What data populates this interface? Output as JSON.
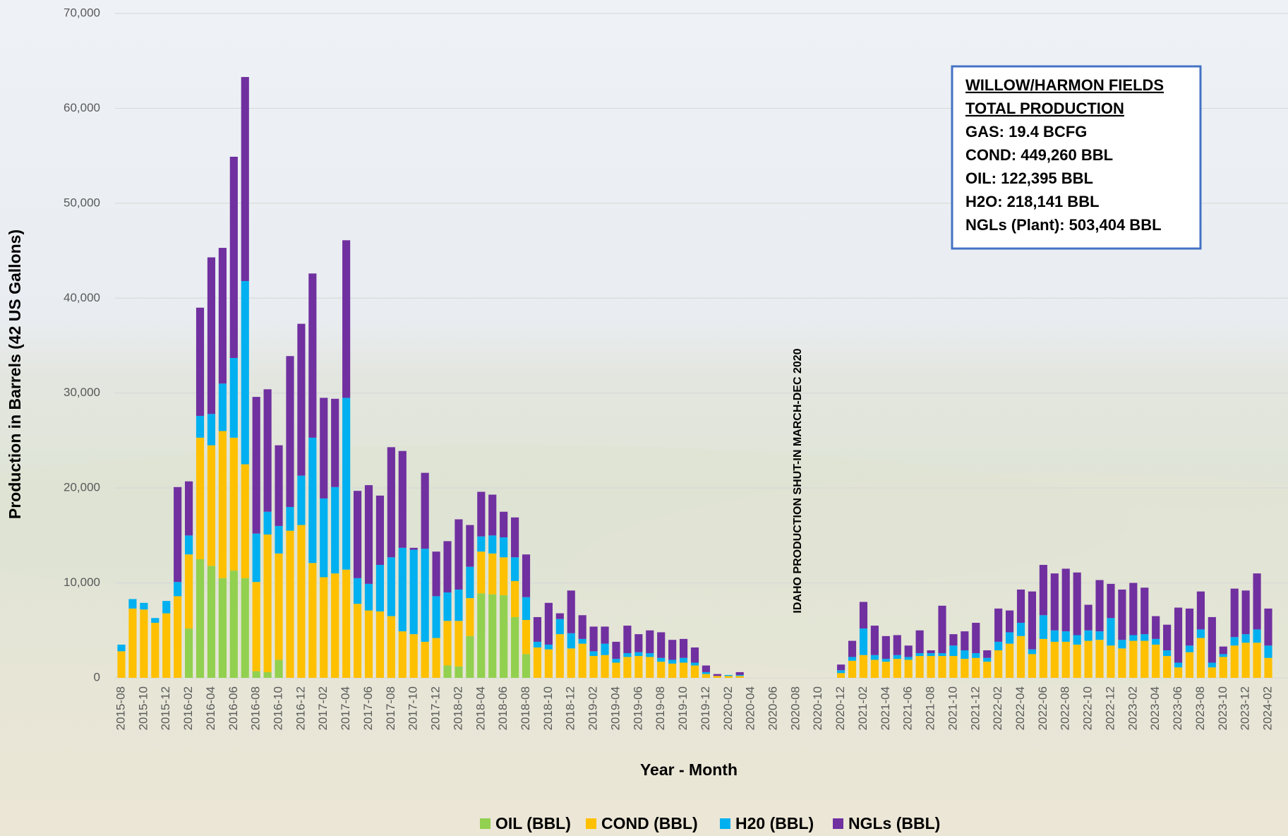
{
  "chart_data": {
    "type": "stacked_bar",
    "y_label": "Production in Barrels (42 US Gallons)",
    "x_label": "Year -  Month",
    "annotation": "IDAHO PRODUCTION SHUT-IN MARCH-DEC 2020",
    "summary_box": {
      "title": [
        "WILLOW/HARMON FIELDS",
        "TOTAL PRODUCTION"
      ],
      "lines": [
        "GAS: 19.4 BCFG",
        "COND: 449,260 BBL",
        "OIL:  122,395 BBL",
        "H2O:  218,141 BBL",
        "NGLs (Plant): 503,404 BBL"
      ]
    },
    "categories": [
      "2015-08",
      null,
      "2015-10",
      null,
      "2015-12",
      null,
      "2016-02",
      null,
      "2016-04",
      null,
      "2016-06",
      null,
      "2016-08",
      null,
      "2016-10",
      null,
      "2016-12",
      null,
      "2017-02",
      null,
      "2017-04",
      null,
      "2017-06",
      null,
      "2017-08",
      null,
      "2017-10",
      null,
      "2017-12",
      null,
      "2018-02",
      null,
      "2018-04",
      null,
      "2018-06",
      null,
      "2018-08",
      null,
      "2018-10",
      null,
      "2018-12",
      null,
      "2019-02",
      null,
      "2019-04",
      null,
      "2019-06",
      null,
      "2019-08",
      null,
      "2019-10",
      null,
      "2019-12",
      null,
      "2020-02",
      null,
      "2020-04",
      null,
      "2020-06",
      null,
      "2020-08",
      null,
      "2020-10",
      null,
      "2020-12",
      null,
      "2021-02",
      null,
      "2021-04",
      null,
      "2021-06",
      null,
      "2021-08",
      null,
      "2021-10",
      null,
      "2021-12",
      null,
      "2022-02",
      null,
      "2022-04",
      null,
      "2022-06",
      null,
      "2022-08",
      null,
      "2022-10",
      null,
      "2022-12",
      null,
      "2023-02",
      null,
      "2023-04",
      null,
      "2023-06",
      null,
      "2023-08",
      null,
      "2023-10",
      null,
      "2023-12",
      null,
      "2024-02"
    ],
    "series": [
      {
        "name": "OIL (BBL)",
        "color": "#92d050",
        "values": [
          0,
          0,
          0,
          0,
          0,
          0,
          5200,
          12500,
          11800,
          10500,
          11300,
          10500,
          700,
          600,
          1900,
          0,
          0,
          0,
          0,
          0,
          0,
          0,
          0,
          0,
          0,
          0,
          0,
          0,
          0,
          1300,
          1200,
          4400,
          8900,
          8800,
          8700,
          6400,
          2500,
          0,
          0,
          0,
          0,
          0,
          0,
          0,
          0,
          0,
          0,
          0,
          0,
          0,
          0,
          0,
          0,
          0,
          0,
          0,
          0,
          0,
          0,
          0,
          0,
          0,
          0,
          0,
          0,
          0,
          0,
          0,
          0,
          0,
          0,
          0,
          0,
          0,
          0,
          0,
          0,
          0,
          0,
          0,
          0,
          0,
          0,
          0,
          0,
          0,
          0,
          0,
          0,
          0,
          0,
          0,
          0,
          0,
          0,
          0,
          0,
          0,
          0,
          0,
          0,
          0,
          0
        ]
      },
      {
        "name": "COND (BBL)",
        "color": "#ffc000",
        "values": [
          2800,
          7300,
          7200,
          5800,
          6800,
          8600,
          7800,
          12800,
          12700,
          15500,
          14000,
          12000,
          9400,
          14500,
          11200,
          15500,
          16100,
          12100,
          10600,
          11000,
          11400,
          7800,
          7100,
          7000,
          6500,
          4900,
          4600,
          3800,
          4200,
          4700,
          4800,
          4000,
          4400,
          4300,
          4000,
          3800,
          3600,
          3200,
          3000,
          4600,
          3100,
          3600,
          2300,
          2400,
          1600,
          2200,
          2300,
          2200,
          1700,
          1500,
          1600,
          1300,
          400,
          200,
          200,
          200,
          0,
          0,
          0,
          0,
          0,
          0,
          0,
          0,
          500,
          1800,
          2400,
          1900,
          1700,
          2000,
          1900,
          2300,
          2300,
          2300,
          2300,
          2000,
          2100,
          1700,
          2900,
          3600,
          4400,
          2500,
          4100,
          3800,
          3800,
          3500,
          3900,
          4000,
          3400,
          3100,
          3900,
          3900,
          3500,
          2300,
          1100,
          2700,
          4200,
          1100,
          2200,
          3400,
          3700,
          3700,
          2100
        ]
      },
      {
        "name": "H20 (BBL)",
        "color": "#00b0f0",
        "values": [
          700,
          1000,
          700,
          500,
          1300,
          1500,
          2000,
          2300,
          3300,
          5000,
          8400,
          19300,
          5100,
          2400,
          2900,
          2500,
          5200,
          13200,
          8300,
          9100,
          18100,
          2700,
          2800,
          4900,
          6200,
          8800,
          8900,
          9800,
          4400,
          3000,
          3300,
          3300,
          1600,
          1900,
          2100,
          2500,
          2400,
          600,
          500,
          1600,
          1600,
          500,
          500,
          1200,
          400,
          400,
          400,
          400,
          400,
          400,
          500,
          300,
          200,
          0,
          100,
          100,
          0,
          0,
          0,
          0,
          0,
          0,
          0,
          0,
          300,
          400,
          2800,
          500,
          300,
          400,
          300,
          300,
          300,
          300,
          1100,
          900,
          500,
          400,
          900,
          1200,
          1400,
          500,
          2500,
          1200,
          1100,
          1000,
          1100,
          900,
          2900,
          900,
          600,
          700,
          600,
          600,
          500,
          700,
          900,
          500,
          300,
          900,
          900,
          1400,
          1300
        ]
      },
      {
        "name": "NGLs (BBL)",
        "color": "#7030a0",
        "values": [
          0,
          0,
          0,
          0,
          0,
          10000,
          5700,
          11400,
          16500,
          14300,
          21200,
          21500,
          14400,
          12900,
          8500,
          15900,
          16000,
          17300,
          10600,
          9300,
          16600,
          9200,
          10400,
          7300,
          11600,
          10200,
          200,
          8000,
          4700,
          5400,
          7400,
          4400,
          4700,
          4300,
          2700,
          4200,
          4500,
          2600,
          4400,
          600,
          4500,
          2500,
          2600,
          1800,
          1800,
          2900,
          1900,
          2400,
          2700,
          2100,
          2000,
          1600,
          700,
          200,
          0,
          300,
          0,
          0,
          0,
          0,
          0,
          0,
          0,
          0,
          600,
          1700,
          2800,
          3100,
          2400,
          2100,
          1200,
          2400,
          300,
          5000,
          1200,
          2000,
          3200,
          800,
          3500,
          2300,
          3500,
          6100,
          5300,
          6000,
          6600,
          6600,
          2700,
          5400,
          3600,
          5300,
          5500,
          4900,
          2400,
          2700,
          5800,
          3900,
          4000,
          4800,
          800,
          5100,
          4600,
          5900,
          3900
        ]
      }
    ],
    "ylim": [
      0,
      70000
    ],
    "yticks": [
      0,
      {
        "value": 10000,
        "label": "10,000"
      },
      {
        "value": 20000,
        "label": "20,000"
      },
      {
        "value": 30000,
        "label": "30,000"
      },
      {
        "value": 40000,
        "label": "40,000"
      },
      {
        "value": 50000,
        "label": "50,000"
      },
      {
        "value": 60000,
        "label": "60,000"
      },
      {
        "value": 70000,
        "label": "70,000"
      }
    ],
    "grid": true
  }
}
